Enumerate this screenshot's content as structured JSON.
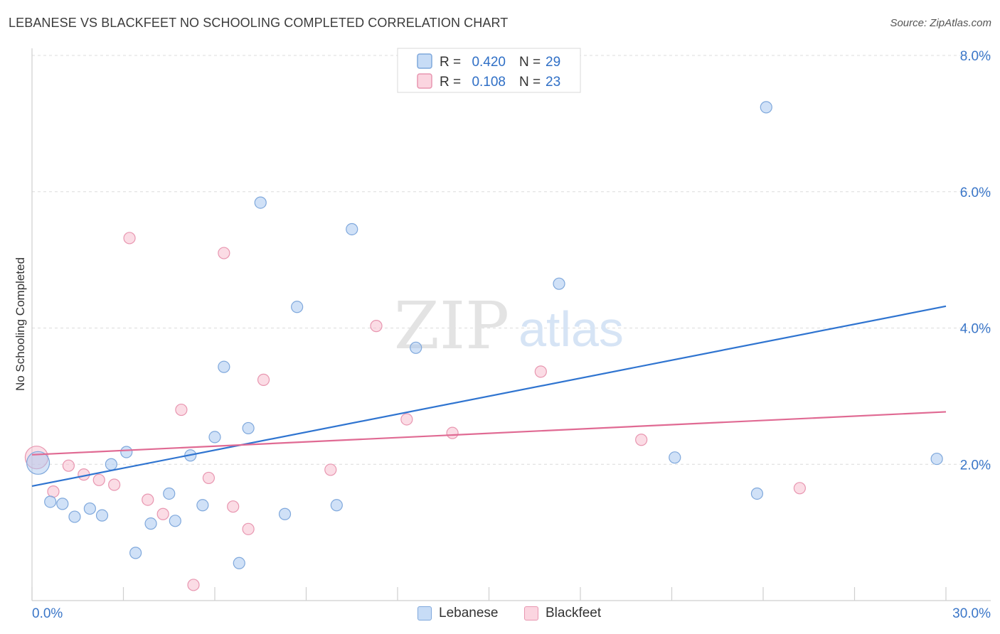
{
  "title": "LEBANESE VS BLACKFEET NO SCHOOLING COMPLETED CORRELATION CHART",
  "source": "Source: ZipAtlas.com",
  "watermark": {
    "zip": "ZIP",
    "atlas": "atlas"
  },
  "chart_data": {
    "type": "scatter",
    "ylabel": "No Schooling Completed",
    "xlim": [
      0,
      30
    ],
    "ylim": [
      0,
      8
    ],
    "x_tick_labels": {
      "min": "0.0%",
      "max": "30.0%"
    },
    "y_ticks": [
      {
        "value": 2,
        "label": "2.0%"
      },
      {
        "value": 4,
        "label": "4.0%"
      },
      {
        "value": 6,
        "label": "6.0%"
      },
      {
        "value": 8,
        "label": "8.0%"
      }
    ],
    "legend": [
      {
        "name": "Lebanese",
        "r_label": "R =",
        "r": "0.420",
        "n_label": "N =",
        "n": "29"
      },
      {
        "name": "Blackfeet",
        "r_label": "R =",
        "r": "0.108",
        "n_label": "N =",
        "n": "23"
      }
    ],
    "series": [
      {
        "name": "Lebanese",
        "color": "#a9c8f0",
        "stroke": "#7fa8dc",
        "trend_color": "#2f74d0",
        "trend": {
          "x0": 0,
          "y0": 1.68,
          "x1": 30,
          "y1": 4.32
        },
        "points": [
          {
            "x": 0.2,
            "y": 2.02,
            "big": true
          },
          {
            "x": 0.6,
            "y": 1.45
          },
          {
            "x": 1.0,
            "y": 1.42
          },
          {
            "x": 1.4,
            "y": 1.23
          },
          {
            "x": 1.9,
            "y": 1.35
          },
          {
            "x": 2.3,
            "y": 1.25
          },
          {
            "x": 2.6,
            "y": 2.0
          },
          {
            "x": 3.1,
            "y": 2.18
          },
          {
            "x": 3.4,
            "y": 0.7
          },
          {
            "x": 3.9,
            "y": 1.13
          },
          {
            "x": 4.5,
            "y": 1.57
          },
          {
            "x": 4.7,
            "y": 1.17
          },
          {
            "x": 5.2,
            "y": 2.13
          },
          {
            "x": 5.6,
            "y": 1.4
          },
          {
            "x": 6.0,
            "y": 2.4
          },
          {
            "x": 6.3,
            "y": 3.43
          },
          {
            "x": 6.8,
            "y": 0.55
          },
          {
            "x": 7.1,
            "y": 2.53
          },
          {
            "x": 7.5,
            "y": 5.84
          },
          {
            "x": 8.3,
            "y": 1.27
          },
          {
            "x": 8.7,
            "y": 4.31
          },
          {
            "x": 10.0,
            "y": 1.4
          },
          {
            "x": 10.5,
            "y": 5.45
          },
          {
            "x": 12.6,
            "y": 3.71
          },
          {
            "x": 17.3,
            "y": 4.65
          },
          {
            "x": 21.1,
            "y": 2.1
          },
          {
            "x": 23.8,
            "y": 1.57
          },
          {
            "x": 24.1,
            "y": 7.24
          },
          {
            "x": 29.7,
            "y": 2.08
          }
        ]
      },
      {
        "name": "Blackfeet",
        "color": "#f7bfd0",
        "stroke": "#e896b0",
        "trend_color": "#e06a93",
        "trend": {
          "x0": 0,
          "y0": 2.14,
          "x1": 30,
          "y1": 2.77
        },
        "points": [
          {
            "x": 0.15,
            "y": 2.1,
            "big": true
          },
          {
            "x": 0.7,
            "y": 1.6
          },
          {
            "x": 1.2,
            "y": 1.98
          },
          {
            "x": 1.7,
            "y": 1.85
          },
          {
            "x": 2.2,
            "y": 1.77
          },
          {
            "x": 2.7,
            "y": 1.7
          },
          {
            "x": 3.2,
            "y": 5.32
          },
          {
            "x": 3.8,
            "y": 1.48
          },
          {
            "x": 4.3,
            "y": 1.27
          },
          {
            "x": 4.9,
            "y": 2.8
          },
          {
            "x": 5.3,
            "y": 0.23
          },
          {
            "x": 5.8,
            "y": 1.8
          },
          {
            "x": 6.3,
            "y": 5.1
          },
          {
            "x": 6.6,
            "y": 1.38
          },
          {
            "x": 7.1,
            "y": 1.05
          },
          {
            "x": 7.6,
            "y": 3.24
          },
          {
            "x": 9.8,
            "y": 1.92
          },
          {
            "x": 11.3,
            "y": 4.03
          },
          {
            "x": 12.3,
            "y": 2.66
          },
          {
            "x": 13.8,
            "y": 2.46
          },
          {
            "x": 16.7,
            "y": 3.36
          },
          {
            "x": 20.0,
            "y": 2.36
          },
          {
            "x": 25.2,
            "y": 1.65
          }
        ]
      }
    ]
  }
}
